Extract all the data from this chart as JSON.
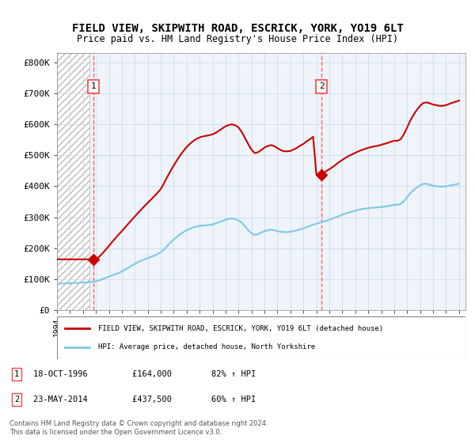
{
  "title": "FIELD VIEW, SKIPWITH ROAD, ESCRICK, YORK, YO19 6LT",
  "subtitle": "Price paid vs. HM Land Registry's House Price Index (HPI)",
  "ylabel_ticks": [
    "£0",
    "£100K",
    "£200K",
    "£300K",
    "£400K",
    "£500K",
    "£600K",
    "£700K",
    "£800K"
  ],
  "ytick_values": [
    0,
    100000,
    200000,
    300000,
    400000,
    500000,
    600000,
    700000,
    800000
  ],
  "ylim": [
    0,
    830000
  ],
  "xlim_start": 1994.0,
  "xlim_end": 2025.5,
  "purchase1": {
    "date": 1996.8,
    "price": 164000,
    "label": "1"
  },
  "purchase2": {
    "date": 2014.4,
    "price": 437500,
    "label": "2"
  },
  "hpi_line_color": "#7EC8E3",
  "price_line_color": "#CC0000",
  "dashed_line_color": "#FF4444",
  "marker_color": "#CC0000",
  "bg_hatch_color": "#E8E8E8",
  "grid_color": "#C8D8E8",
  "legend_line1": "FIELD VIEW, SKIPWITH ROAD, ESCRICK, YORK, YO19 6LT (detached house)",
  "legend_line2": "HPI: Average price, detached house, North Yorkshire",
  "note1": "1    18-OCT-1996         £164,000        82% ↑ HPI",
  "note2": "2    23-MAY-2014         £437,500        60% ↑ HPI",
  "copyright": "Contains HM Land Registry data © Crown copyright and database right 2024.\nThis data is licensed under the Open Government Licence v3.0.",
  "hpi_data_x": [
    1994.0,
    1994.25,
    1994.5,
    1994.75,
    1995.0,
    1995.25,
    1995.5,
    1995.75,
    1996.0,
    1996.25,
    1996.5,
    1996.75,
    1997.0,
    1997.25,
    1997.5,
    1997.75,
    1998.0,
    1998.25,
    1998.5,
    1998.75,
    1999.0,
    1999.25,
    1999.5,
    1999.75,
    2000.0,
    2000.25,
    2000.5,
    2000.75,
    2001.0,
    2001.25,
    2001.5,
    2001.75,
    2002.0,
    2002.25,
    2002.5,
    2002.75,
    2003.0,
    2003.25,
    2003.5,
    2003.75,
    2004.0,
    2004.25,
    2004.5,
    2004.75,
    2005.0,
    2005.25,
    2005.5,
    2005.75,
    2006.0,
    2006.25,
    2006.5,
    2006.75,
    2007.0,
    2007.25,
    2007.5,
    2007.75,
    2008.0,
    2008.25,
    2008.5,
    2008.75,
    2009.0,
    2009.25,
    2009.5,
    2009.75,
    2010.0,
    2010.25,
    2010.5,
    2010.75,
    2011.0,
    2011.25,
    2011.5,
    2011.75,
    2012.0,
    2012.25,
    2012.5,
    2012.75,
    2013.0,
    2013.25,
    2013.5,
    2013.75,
    2014.0,
    2014.25,
    2014.5,
    2014.75,
    2015.0,
    2015.25,
    2015.5,
    2015.75,
    2016.0,
    2016.25,
    2016.5,
    2016.75,
    2017.0,
    2017.25,
    2017.5,
    2017.75,
    2018.0,
    2018.25,
    2018.5,
    2018.75,
    2019.0,
    2019.25,
    2019.5,
    2019.75,
    2020.0,
    2020.25,
    2020.5,
    2020.75,
    2021.0,
    2021.25,
    2021.5,
    2021.75,
    2022.0,
    2022.25,
    2022.5,
    2022.75,
    2023.0,
    2023.25,
    2023.5,
    2023.75,
    2024.0,
    2024.25,
    2024.5,
    2024.75,
    2025.0
  ],
  "hpi_data_y": [
    85000,
    85500,
    86000,
    86500,
    87000,
    87500,
    88000,
    88500,
    89000,
    89500,
    90500,
    91500,
    93000,
    96000,
    100000,
    104000,
    108000,
    112000,
    116000,
    120000,
    125000,
    131000,
    137000,
    143000,
    149000,
    155000,
    160000,
    164000,
    168000,
    172000,
    176000,
    181000,
    187000,
    196000,
    207000,
    218000,
    228000,
    237000,
    245000,
    252000,
    258000,
    263000,
    267000,
    270000,
    272000,
    273000,
    274000,
    275000,
    277000,
    280000,
    284000,
    288000,
    292000,
    295000,
    296000,
    294000,
    290000,
    282000,
    270000,
    258000,
    248000,
    243000,
    245000,
    250000,
    255000,
    258000,
    260000,
    258000,
    255000,
    253000,
    252000,
    252000,
    253000,
    255000,
    258000,
    261000,
    264000,
    268000,
    272000,
    276000,
    279000,
    282000,
    285000,
    288000,
    292000,
    296000,
    300000,
    304000,
    308000,
    312000,
    315000,
    318000,
    321000,
    324000,
    326000,
    328000,
    329000,
    330000,
    331000,
    332000,
    333000,
    334000,
    336000,
    338000,
    340000,
    340000,
    343000,
    352000,
    365000,
    378000,
    388000,
    396000,
    403000,
    408000,
    408000,
    405000,
    402000,
    400000,
    399000,
    399000,
    400000,
    402000,
    404000,
    406000,
    408000
  ],
  "price_data_x": [
    1994.0,
    1994.25,
    1994.5,
    1994.75,
    1995.0,
    1995.25,
    1995.5,
    1995.75,
    1996.0,
    1996.25,
    1996.5,
    1996.75,
    1997.0,
    1997.25,
    1997.5,
    1997.75,
    1998.0,
    1998.25,
    1998.5,
    1998.75,
    1999.0,
    1999.25,
    1999.5,
    1999.75,
    2000.0,
    2000.25,
    2000.5,
    2000.75,
    2001.0,
    2001.25,
    2001.5,
    2001.75,
    2002.0,
    2002.25,
    2002.5,
    2002.75,
    2003.0,
    2003.25,
    2003.5,
    2003.75,
    2004.0,
    2004.25,
    2004.5,
    2004.75,
    2005.0,
    2005.25,
    2005.5,
    2005.75,
    2006.0,
    2006.25,
    2006.5,
    2006.75,
    2007.0,
    2007.25,
    2007.5,
    2007.75,
    2008.0,
    2008.25,
    2008.5,
    2008.75,
    2009.0,
    2009.25,
    2009.5,
    2009.75,
    2010.0,
    2010.25,
    2010.5,
    2010.75,
    2011.0,
    2011.25,
    2011.5,
    2011.75,
    2012.0,
    2012.25,
    2012.5,
    2012.75,
    2013.0,
    2013.25,
    2013.5,
    2013.75,
    2014.0,
    2014.25,
    2014.5,
    2014.75,
    2015.0,
    2015.25,
    2015.5,
    2015.75,
    2016.0,
    2016.25,
    2016.5,
    2016.75,
    2017.0,
    2017.25,
    2017.5,
    2017.75,
    2018.0,
    2018.25,
    2018.5,
    2018.75,
    2019.0,
    2019.25,
    2019.5,
    2019.75,
    2020.0,
    2020.25,
    2020.5,
    2020.75,
    2021.0,
    2021.25,
    2021.5,
    2021.75,
    2022.0,
    2022.25,
    2022.5,
    2022.75,
    2023.0,
    2023.25,
    2023.5,
    2023.75,
    2024.0,
    2024.25,
    2024.5,
    2024.75,
    2025.0
  ],
  "price_data_y": [
    164000,
    164000,
    164000,
    164000,
    164000,
    164000,
    164000,
    164000,
    164000,
    164000,
    164000,
    164000,
    164000,
    172000,
    183000,
    195000,
    207000,
    220000,
    232000,
    244000,
    255000,
    267000,
    279000,
    291000,
    302000,
    314000,
    325000,
    336000,
    347000,
    357000,
    368000,
    379000,
    391000,
    410000,
    430000,
    449000,
    467000,
    484000,
    500000,
    514000,
    527000,
    537000,
    546000,
    553000,
    558000,
    561000,
    563000,
    565000,
    568000,
    573000,
    580000,
    587000,
    594000,
    598000,
    600000,
    597000,
    590000,
    575000,
    556000,
    536000,
    518000,
    507000,
    510000,
    517000,
    525000,
    530000,
    533000,
    530000,
    523000,
    517000,
    513000,
    513000,
    514000,
    519000,
    524000,
    531000,
    537000,
    545000,
    552000,
    560000,
    437500,
    437500,
    437500,
    449000,
    455000,
    462000,
    470000,
    478000,
    485000,
    492000,
    498000,
    503000,
    508000,
    513000,
    517000,
    521000,
    524000,
    527000,
    529000,
    531000,
    534000,
    537000,
    540000,
    544000,
    547000,
    547000,
    552000,
    568000,
    590000,
    613000,
    631000,
    647000,
    660000,
    669000,
    671000,
    668000,
    664000,
    662000,
    660000,
    660000,
    662000,
    666000,
    670000,
    673000,
    677000
  ]
}
